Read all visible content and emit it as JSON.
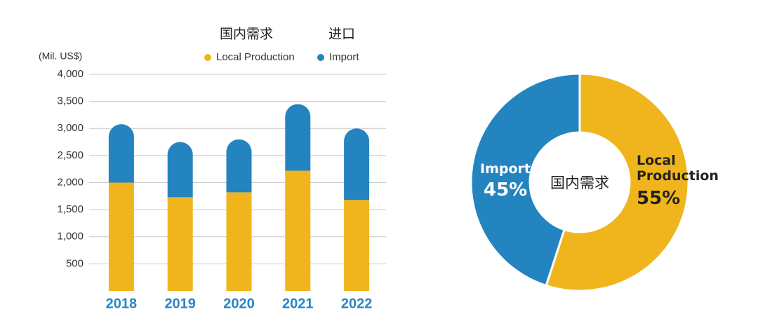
{
  "chart_data": [
    {
      "type": "bar",
      "stacked": true,
      "y_label": "(Mil. US$)",
      "categories": [
        "2018",
        "2019",
        "2020",
        "2021",
        "2022"
      ],
      "series": [
        {
          "name": "Local Production",
          "group_title": "国内需求",
          "color": "#f0b51c",
          "values": [
            2000,
            1730,
            1820,
            2220,
            1680
          ]
        },
        {
          "name": "Import",
          "group_title": "进口",
          "color": "#2484c0",
          "values": [
            1080,
            1020,
            980,
            1230,
            1320
          ]
        }
      ],
      "ylim": [
        0,
        4000
      ],
      "yticks": [
        500,
        {
          "value": 1000,
          "label": "1,000"
        },
        {
          "value": 1500,
          "label": "1,500"
        },
        {
          "value": 2000,
          "label": "2,000"
        },
        {
          "value": 2500,
          "label": "2,500"
        },
        {
          "value": 3000,
          "label": "3,000"
        },
        {
          "value": 3500,
          "label": "3,500"
        },
        {
          "value": 4000,
          "label": "4,000"
        }
      ],
      "grid": true
    },
    {
      "type": "donut",
      "center_text": "国内需求",
      "categories": [
        "Local Production",
        "Import"
      ],
      "values": [
        55,
        45
      ],
      "value_labels": [
        "55%",
        "45%"
      ],
      "colors": [
        "#f0b51c",
        "#2484c0"
      ]
    }
  ]
}
